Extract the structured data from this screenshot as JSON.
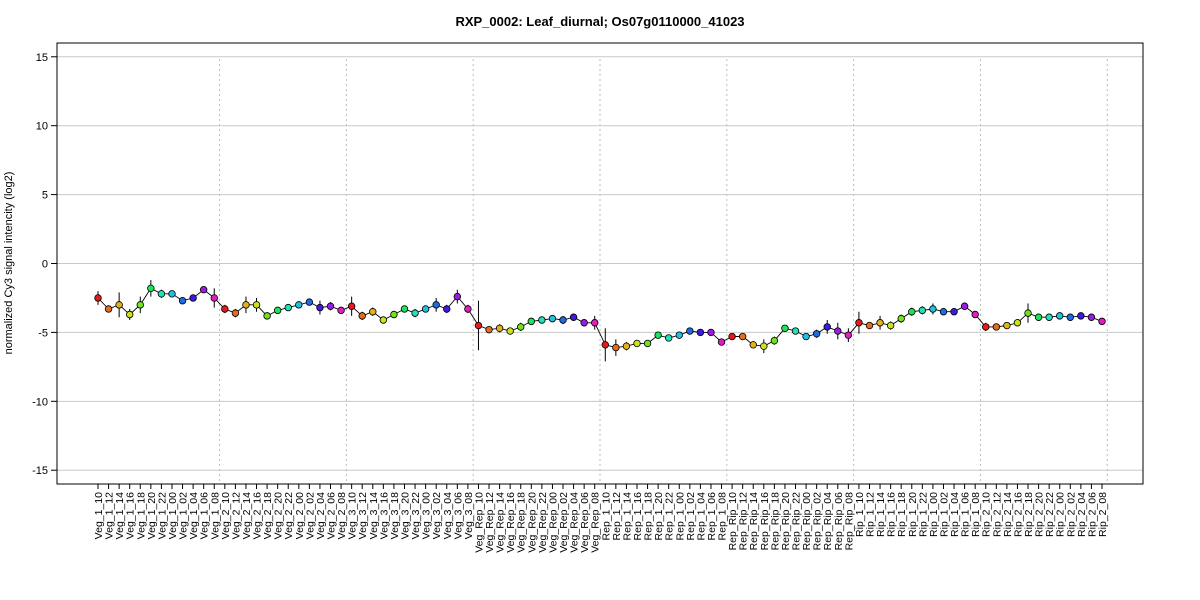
{
  "chart_data": {
    "type": "line",
    "title": "RXP_0002: Leaf_diurnal; Os07g0110000_41023",
    "xlabel": "",
    "ylabel": "normalized Cy3 signal intencity (log2)",
    "ylim": [
      -16,
      16
    ],
    "yticks": [
      -15,
      -10,
      -5,
      0,
      5,
      10,
      15
    ],
    "grid": "horizontal",
    "group_separators_after": [
      12,
      24,
      36,
      48,
      60,
      72,
      84,
      96
    ],
    "x": [
      "Veg_1_10",
      "Veg_1_12",
      "Veg_1_14",
      "Veg_1_16",
      "Veg_1_18",
      "Veg_1_20",
      "Veg_1_22",
      "Veg_1_00",
      "Veg_1_02",
      "Veg_1_04",
      "Veg_1_06",
      "Veg_1_08",
      "Veg_2_10",
      "Veg_2_12",
      "Veg_2_14",
      "Veg_2_16",
      "Veg_2_18",
      "Veg_2_20",
      "Veg_2_22",
      "Veg_2_00",
      "Veg_2_02",
      "Veg_2_04",
      "Veg_2_06",
      "Veg_2_08",
      "Veg_3_10",
      "Veg_3_12",
      "Veg_3_14",
      "Veg_3_16",
      "Veg_3_18",
      "Veg_3_20",
      "Veg_3_22",
      "Veg_3_00",
      "Veg_3_02",
      "Veg_3_04",
      "Veg_3_06",
      "Veg_3_08",
      "Veg_Rep_10",
      "Veg_Rep_12",
      "Veg_Rep_14",
      "Veg_Rep_16",
      "Veg_Rep_18",
      "Veg_Rep_20",
      "Veg_Rep_22",
      "Veg_Rep_00",
      "Veg_Rep_02",
      "Veg_Rep_04",
      "Veg_Rep_06",
      "Veg_Rep_08",
      "Rep_1_10",
      "Rep_1_12",
      "Rep_1_14",
      "Rep_1_16",
      "Rep_1_18",
      "Rep_1_20",
      "Rep_1_22",
      "Rep_1_00",
      "Rep_1_02",
      "Rep_1_04",
      "Rep_1_06",
      "Rep_1_08",
      "Rep_Rip_10",
      "Rep_Rip_12",
      "Rep_Rip_14",
      "Rep_Rip_16",
      "Rep_Rip_18",
      "Rep_Rip_20",
      "Rep_Rip_22",
      "Rep_Rip_00",
      "Rep_Rip_02",
      "Rep_Rip_04",
      "Rep_Rip_06",
      "Rep_Rip_08",
      "Rip_1_10",
      "Rip_1_12",
      "Rip_1_14",
      "Rip_1_16",
      "Rip_1_18",
      "Rip_1_20",
      "Rip_1_22",
      "Rip_1_00",
      "Rip_1_02",
      "Rip_1_04",
      "Rip_1_06",
      "Rip_1_08",
      "Rip_2_10",
      "Rip_2_12",
      "Rip_2_14",
      "Rip_2_16",
      "Rip_2_18",
      "Rip_2_20",
      "Rip_2_22",
      "Rip_2_00",
      "Rip_2_02",
      "Rip_2_04",
      "Rip_2_06",
      "Rip_2_08"
    ],
    "series": [
      {
        "values": [
          -2.5,
          -3.3,
          -3.0,
          -3.7,
          -3.0,
          -1.8,
          -2.2,
          -2.2,
          -2.7,
          -2.5,
          -1.9,
          -2.5,
          -3.3,
          -3.6,
          -3.0,
          -3.0,
          -3.8,
          -3.4,
          -3.2,
          -3.0,
          -2.8,
          -3.2,
          -3.1,
          -3.4,
          -3.1,
          -3.8,
          -3.5,
          -4.1,
          -3.7,
          -3.3,
          -3.6,
          -3.3,
          -3.0,
          -3.3,
          -2.4,
          -3.3,
          -4.5,
          -4.8,
          -4.7,
          -4.9,
          -4.6,
          -4.2,
          -4.1,
          -4.0,
          -4.1,
          -3.9,
          -4.3,
          -4.3,
          -5.9,
          -6.1,
          -6.0,
          -5.8,
          -5.8,
          -5.2,
          -5.4,
          -5.2,
          -4.9,
          -5.0,
          -5.0,
          -5.7,
          -5.3,
          -5.3,
          -5.9,
          -6.0,
          -5.6,
          -4.7,
          -4.9,
          -5.3,
          -5.1,
          -4.6,
          -4.9,
          -5.2,
          -4.3,
          -4.5,
          -4.3,
          -4.5,
          -4.0,
          -3.5,
          -3.4,
          -3.3,
          -3.5,
          -3.5,
          -3.1,
          -3.7,
          -4.6,
          -4.6,
          -4.5,
          -4.3,
          -3.6,
          -3.9,
          -3.9,
          -3.8,
          -3.9,
          -3.8,
          -3.9,
          -4.2
        ],
        "errors": [
          0.5,
          0.2,
          0.9,
          0.4,
          0.6,
          0.6,
          0.3,
          0.2,
          0.2,
          0.2,
          0.2,
          0.7,
          0.3,
          0.3,
          0.6,
          0.5,
          0.2,
          0.2,
          0.2,
          0.2,
          0.2,
          0.5,
          0.3,
          0.2,
          0.7,
          0.3,
          0.3,
          0.2,
          0.2,
          0.2,
          0.3,
          0.2,
          0.5,
          0.3,
          0.5,
          0.3,
          1.8,
          0.2,
          0.3,
          0.2,
          0.3,
          0.2,
          0.2,
          0.2,
          0.3,
          0.2,
          0.2,
          0.5,
          1.2,
          0.6,
          0.3,
          0.2,
          0.2,
          0.2,
          0.2,
          0.2,
          0.2,
          0.2,
          0.2,
          0.2,
          0.2,
          0.2,
          0.2,
          0.5,
          0.3,
          0.2,
          0.2,
          0.2,
          0.3,
          0.5,
          0.6,
          0.5,
          0.8,
          0.2,
          0.5,
          0.3,
          0.3,
          0.3,
          0.3,
          0.4,
          0.2,
          0.2,
          0.2,
          0.2,
          0.3,
          0.2,
          0.2,
          0.2,
          0.7,
          0.2,
          0.2,
          0.2,
          0.2,
          0.2,
          0.2,
          0.2
        ]
      }
    ],
    "point_colors": [
      "#e41a1c",
      "#e46d1c",
      "#e4b01c",
      "#c9e41c",
      "#6fe41c",
      "#1ce45a",
      "#1ce4b6",
      "#1cc4e4",
      "#1c6de4",
      "#3c1ce4",
      "#9a1ce4",
      "#e41cc4"
    ]
  }
}
